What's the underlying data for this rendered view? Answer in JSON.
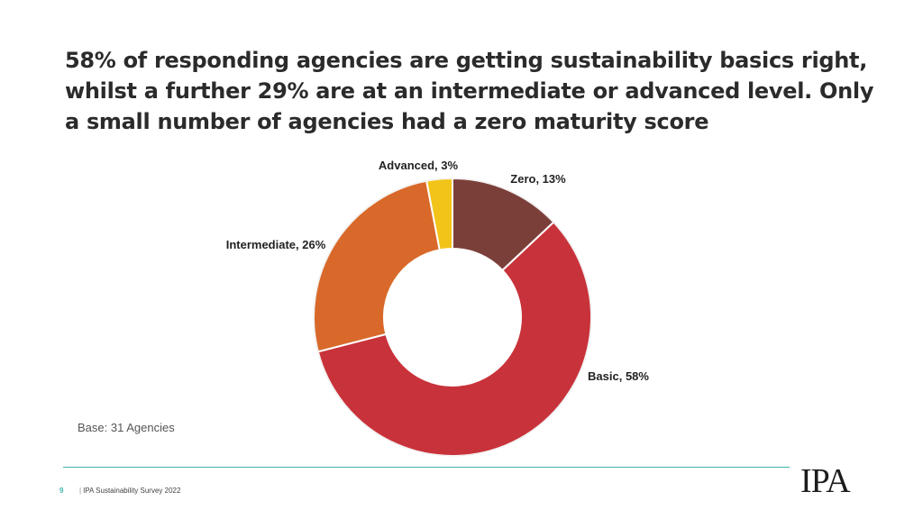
{
  "headline": {
    "line1": "58% of responding agencies are getting sustainability basics right,",
    "line2": "whilst a further 29% are at an intermediate or advanced level.   Only",
    "line3": "a small number of agencies had a zero maturity score"
  },
  "chart_data": {
    "type": "pie",
    "donut": true,
    "slices": [
      {
        "label": "Zero, 13%",
        "category": "Zero",
        "value": 13,
        "color": "#7b3f39"
      },
      {
        "label": "Basic, 58%",
        "category": "Basic",
        "value": 58,
        "color": "#c8323a"
      },
      {
        "label": "Intermediate, 26%",
        "category": "Intermediate",
        "value": 26,
        "color": "#d8692a"
      },
      {
        "label": "Advanced, 3%",
        "category": "Advanced",
        "value": 3,
        "color": "#f2c419"
      }
    ]
  },
  "base_note": "Base: 31 Agencies",
  "footer": {
    "page_number": "9",
    "separator": "|",
    "title": "IPA Sustainability Survey 2022"
  },
  "logo_text": "IPA",
  "colors": {
    "footer_accent": "#3fb5ab"
  }
}
